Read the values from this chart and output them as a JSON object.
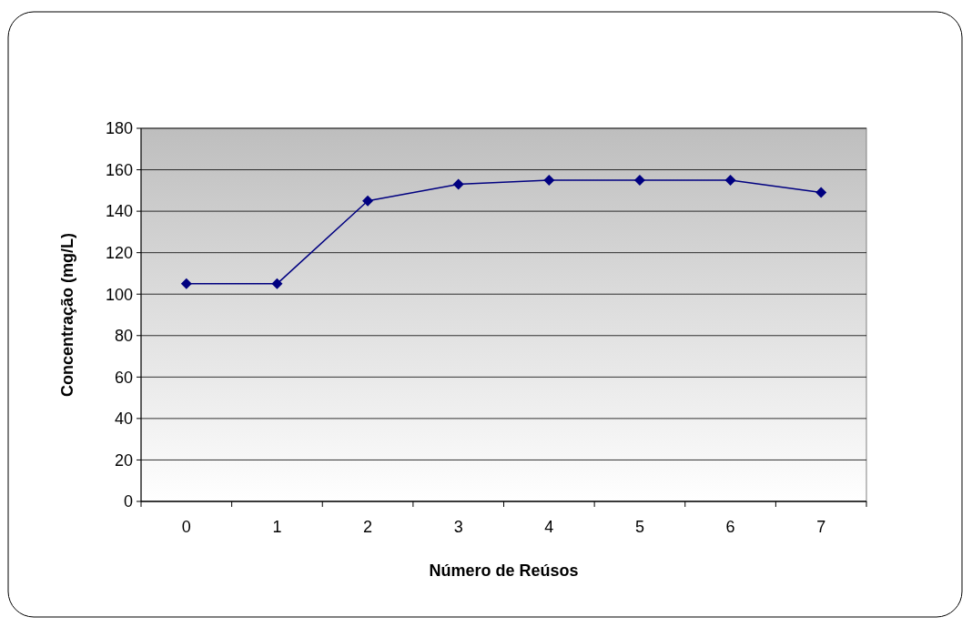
{
  "chart_data": {
    "type": "line",
    "xlabel": "Número de Reúsos",
    "ylabel": "Concentração (mg/L)",
    "categories": [
      "0",
      "1",
      "2",
      "3",
      "4",
      "5",
      "6",
      "7"
    ],
    "series": [
      {
        "color": "#000080",
        "values": [
          105,
          105,
          145,
          153,
          155,
          155,
          155,
          149
        ]
      }
    ],
    "ylim": [
      0,
      180
    ],
    "yticks": [
      0,
      20,
      40,
      60,
      80,
      100,
      120,
      140,
      160,
      180
    ],
    "grid": "y",
    "marker": "diamond",
    "line_style": "solid",
    "legend": false
  }
}
